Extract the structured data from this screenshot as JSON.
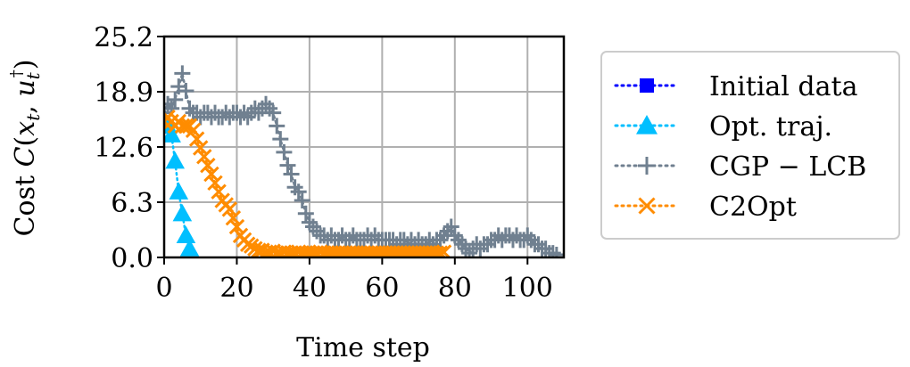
{
  "chart_data": {
    "type": "line",
    "title": "",
    "xlabel": "Time step",
    "ylabel": "Cost C(x_t, u_t^†)",
    "xlim": [
      0,
      110
    ],
    "ylim": [
      0.0,
      25.2
    ],
    "xticks": [
      0,
      20,
      40,
      60,
      80,
      100
    ],
    "xtick_labels": [
      "0",
      "20",
      "40",
      "60",
      "80",
      "100"
    ],
    "yticks": [
      0.0,
      6.3,
      12.6,
      18.9,
      25.2
    ],
    "ytick_labels": [
      "0.0",
      "6.3",
      "12.6",
      "18.9",
      "25.2"
    ],
    "grid": true,
    "legend_position": "right-outside",
    "series": [
      {
        "name": "Initial data",
        "color": "#0000ff",
        "marker": "square",
        "linestyle": "dotted",
        "x": [],
        "y": []
      },
      {
        "name": "Opt. traj.",
        "color": "#00bfff",
        "marker": "triangle",
        "linestyle": "dotted",
        "x": [
          1,
          2,
          3,
          4,
          5,
          6,
          7
        ],
        "y": [
          15.0,
          14.0,
          11.0,
          7.5,
          5.0,
          2.5,
          1.0
        ]
      },
      {
        "name": "CGP − LCB",
        "color": "#708090",
        "marker": "plus",
        "linestyle": "dotted",
        "x": [
          0,
          1,
          2,
          3,
          4,
          5,
          6,
          7,
          8,
          9,
          10,
          11,
          12,
          13,
          14,
          15,
          16,
          17,
          18,
          19,
          20,
          21,
          22,
          23,
          24,
          25,
          26,
          27,
          28,
          29,
          30,
          31,
          32,
          33,
          34,
          35,
          36,
          37,
          38,
          39,
          40,
          41,
          42,
          43,
          44,
          45,
          46,
          47,
          48,
          49,
          50,
          51,
          52,
          53,
          54,
          55,
          56,
          57,
          58,
          59,
          60,
          61,
          62,
          63,
          64,
          65,
          66,
          67,
          68,
          69,
          70,
          71,
          72,
          73,
          74,
          75,
          76,
          77,
          78,
          79,
          80,
          81,
          82,
          83,
          84,
          85,
          86,
          87,
          88,
          89,
          90,
          91,
          92,
          93,
          94,
          95,
          96,
          97,
          98,
          99,
          100,
          101,
          102,
          103,
          104,
          105,
          106,
          107,
          108
        ],
        "y": [
          16.5,
          17.5,
          17.0,
          18.0,
          19.5,
          21.0,
          19.0,
          17.0,
          16.5,
          16.5,
          16.0,
          16.5,
          16.5,
          16.0,
          16.5,
          16.0,
          16.0,
          16.5,
          16.0,
          16.5,
          16.5,
          16.0,
          16.5,
          16.0,
          16.5,
          17.0,
          16.5,
          17.0,
          17.5,
          17.0,
          16.5,
          15.0,
          13.5,
          12.0,
          10.5,
          9.5,
          8.0,
          7.5,
          6.5,
          5.0,
          4.0,
          3.5,
          3.0,
          2.5,
          2.5,
          2.0,
          2.5,
          2.0,
          2.0,
          2.5,
          2.0,
          2.0,
          2.5,
          2.0,
          2.0,
          2.0,
          2.5,
          2.0,
          2.5,
          2.0,
          2.0,
          2.0,
          2.0,
          2.0,
          1.5,
          2.0,
          2.0,
          1.5,
          2.0,
          1.5,
          2.0,
          1.5,
          1.5,
          2.0,
          1.5,
          2.0,
          2.0,
          2.5,
          3.0,
          3.5,
          2.5,
          2.0,
          1.5,
          1.0,
          0.5,
          1.0,
          1.5,
          1.0,
          1.5,
          1.5,
          2.0,
          2.0,
          2.5,
          2.0,
          2.5,
          2.5,
          2.0,
          2.5,
          2.0,
          2.0,
          2.5,
          2.0,
          1.5,
          1.5,
          1.0,
          1.0,
          0.5,
          0.5,
          0.3
        ]
      },
      {
        "name": "C2Opt",
        "color": "#ff8c00",
        "marker": "x",
        "linestyle": "dotted",
        "x": [
          0,
          1,
          2,
          3,
          4,
          5,
          6,
          7,
          8,
          9,
          10,
          11,
          12,
          13,
          14,
          15,
          16,
          17,
          18,
          19,
          20,
          21,
          22,
          23,
          24,
          25,
          26,
          27,
          28,
          29,
          30,
          31,
          32,
          33,
          34,
          35,
          36,
          37,
          38,
          39,
          40,
          41,
          42,
          43,
          44,
          45,
          46,
          47,
          48,
          49,
          50,
          51,
          52,
          53,
          54,
          55,
          56,
          57,
          58,
          59,
          60,
          61,
          62,
          63,
          64,
          65,
          66,
          67,
          68,
          69,
          70,
          71,
          72,
          73,
          74,
          75,
          76,
          77
        ],
        "y": [
          15.5,
          16.0,
          15.5,
          15.0,
          15.5,
          15.0,
          15.0,
          15.0,
          14.5,
          13.5,
          12.5,
          11.5,
          10.5,
          9.5,
          8.5,
          7.5,
          6.5,
          6.0,
          5.5,
          4.5,
          3.5,
          2.5,
          2.0,
          1.5,
          1.3,
          1.0,
          0.8,
          0.8,
          0.6,
          0.6,
          0.7,
          0.5,
          0.5,
          0.6,
          0.5,
          0.5,
          0.5,
          0.6,
          0.5,
          0.5,
          0.5,
          0.5,
          0.5,
          0.6,
          0.5,
          0.5,
          0.5,
          0.5,
          0.5,
          0.5,
          0.5,
          0.5,
          0.5,
          0.5,
          0.5,
          0.5,
          0.5,
          0.5,
          0.5,
          0.5,
          0.5,
          0.5,
          0.5,
          0.5,
          0.5,
          0.5,
          0.5,
          0.5,
          0.5,
          0.5,
          0.5,
          0.5,
          0.5,
          0.5,
          0.5,
          0.5,
          0.5,
          0.6
        ]
      }
    ]
  }
}
